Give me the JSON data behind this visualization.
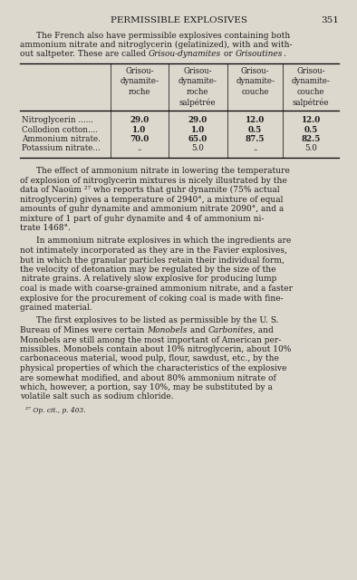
{
  "bg_color": "#ddd8ce",
  "header_text": "PERMISSIBLE EXPLOSIVES",
  "page_number": "351",
  "table_col_headers": [
    "Grisou-\ndynamite-\nroche",
    "Grisou-\ndynamite-\nroche\nsalpétrée",
    "Grisou-\ndynamite-\ncouche",
    "Grisou-\ndynamite-\ncouche\nsalpétrée"
  ],
  "table_row_labels": [
    "Nitroglycerin ......",
    "Collodion cotton....",
    "Ammonium nitrate.",
    "Potassium nitrate..."
  ],
  "table_data": [
    [
      "29.0",
      "29.0",
      "12.0",
      "12.0"
    ],
    [
      "1.0",
      "1.0",
      "0.5",
      "0.5"
    ],
    [
      "70.0",
      "65.0",
      "87.5",
      "82.5"
    ],
    [
      "..",
      "5.0",
      "..",
      "5.0"
    ]
  ],
  "footnote": "²⁷ Op. cit., p. 403.",
  "font_size": 6.5,
  "title_font_size": 7.5,
  "text_color": "#1a1a1a"
}
